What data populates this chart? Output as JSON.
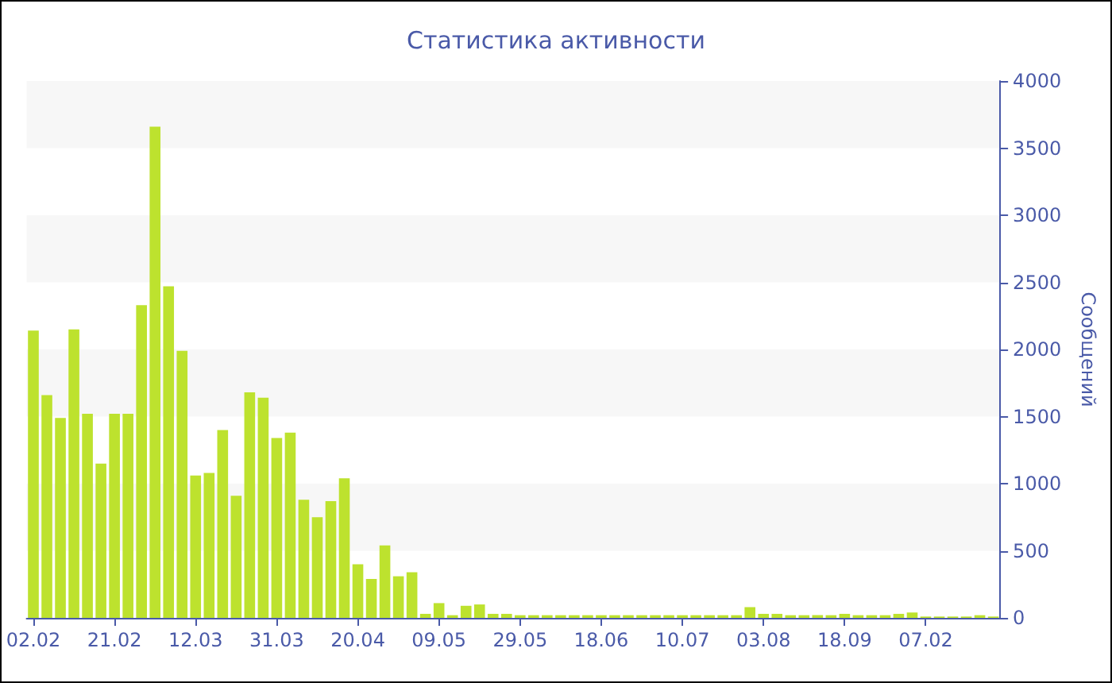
{
  "chart_data": {
    "type": "bar",
    "title": "Статистика активности",
    "ylabel": "Сообщений",
    "categories": [
      "02.02",
      null,
      null,
      null,
      null,
      null,
      "21.02",
      null,
      null,
      null,
      null,
      null,
      "12.03",
      null,
      null,
      null,
      null,
      null,
      "31.03",
      null,
      null,
      null,
      null,
      null,
      "20.04",
      null,
      null,
      null,
      null,
      null,
      "09.05",
      null,
      null,
      null,
      null,
      null,
      "29.05",
      null,
      null,
      null,
      null,
      null,
      "18.06",
      null,
      null,
      null,
      null,
      null,
      "10.07",
      null,
      null,
      null,
      null,
      null,
      "03.08",
      null,
      null,
      null,
      null,
      null,
      "18.09",
      null,
      null,
      null,
      null,
      null,
      "07.02",
      null,
      null,
      null,
      null,
      null
    ],
    "values": [
      2140,
      1660,
      1490,
      2150,
      1520,
      1150,
      1520,
      1520,
      2330,
      3660,
      2470,
      1990,
      1060,
      1080,
      1400,
      910,
      1680,
      1640,
      1340,
      1380,
      880,
      750,
      870,
      1040,
      400,
      290,
      540,
      310,
      340,
      30,
      110,
      20,
      90,
      100,
      30,
      30,
      20,
      20,
      20,
      20,
      20,
      20,
      20,
      20,
      20,
      20,
      20,
      20,
      20,
      20,
      20,
      20,
      20,
      80,
      30,
      30,
      20,
      20,
      20,
      20,
      30,
      20,
      20,
      20,
      30,
      40,
      10,
      10,
      10,
      10,
      20,
      10
    ],
    "color": "#bde22e",
    "ylim": [
      0,
      4000
    ],
    "yticks": [
      0,
      500,
      1000,
      1500,
      2000,
      2500,
      3000,
      3500,
      4000
    ]
  }
}
